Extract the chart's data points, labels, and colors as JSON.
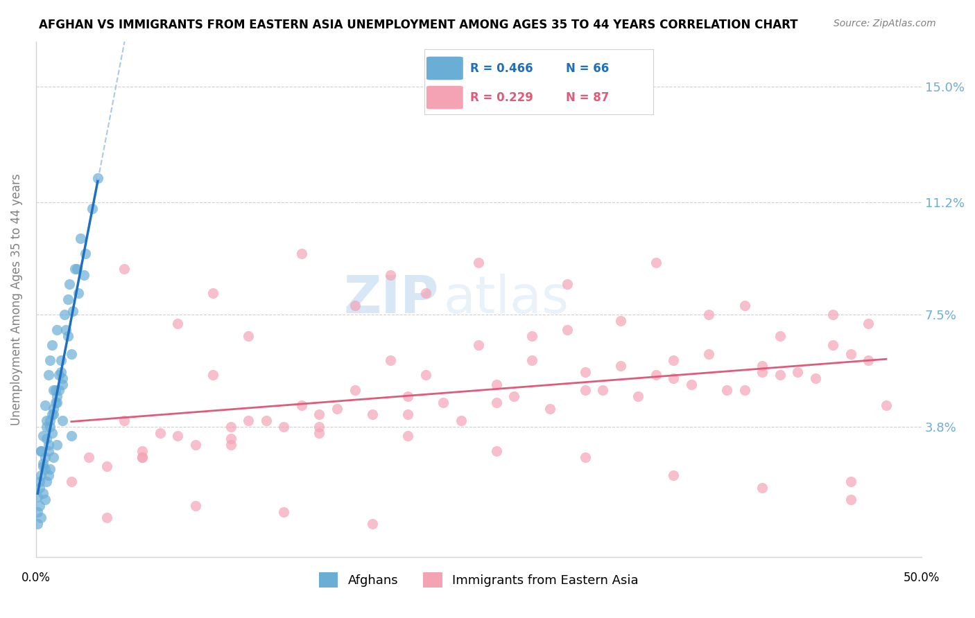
{
  "title": "AFGHAN VS IMMIGRANTS FROM EASTERN ASIA UNEMPLOYMENT AMONG AGES 35 TO 44 YEARS CORRELATION CHART",
  "source": "Source: ZipAtlas.com",
  "ylabel": "Unemployment Among Ages 35 to 44 years",
  "ytick_labels": [
    "3.8%",
    "7.5%",
    "11.2%",
    "15.0%"
  ],
  "ytick_values": [
    0.038,
    0.075,
    0.112,
    0.15
  ],
  "xlim": [
    0.0,
    0.5
  ],
  "ylim": [
    -0.005,
    0.165
  ],
  "legend_r1": "R = 0.466",
  "legend_n1": "N = 66",
  "legend_r2": "R = 0.229",
  "legend_n2": "N = 87",
  "color_afghan": "#6aaed6",
  "color_eastern_asia": "#f4a3b5",
  "color_trendline_afghan": "#1f6fbf",
  "color_trendline_eastern": "#e05a7a",
  "color_diagonal": "#aac8e8",
  "background_color": "#ffffff",
  "grid_color": "#d0d0d0",
  "right_axis_color": "#6baed6",
  "watermark_zip": "ZIP",
  "watermark_atlas": "atlas",
  "afghan_x": [
    0.01,
    0.015,
    0.02,
    0.008,
    0.005,
    0.003,
    0.012,
    0.018,
    0.025,
    0.022,
    0.007,
    0.009,
    0.004,
    0.006,
    0.011,
    0.014,
    0.017,
    0.013,
    0.002,
    0.001,
    0.016,
    0.019,
    0.023,
    0.028,
    0.032,
    0.035,
    0.008,
    0.004,
    0.003,
    0.006,
    0.009,
    0.012,
    0.015,
    0.007,
    0.005,
    0.01,
    0.02,
    0.014,
    0.011,
    0.013,
    0.002,
    0.001,
    0.003,
    0.004,
    0.006,
    0.008,
    0.01,
    0.012,
    0.005,
    0.007,
    0.009,
    0.015,
    0.018,
    0.021,
    0.024,
    0.027,
    0.003,
    0.001,
    0.002,
    0.004,
    0.006,
    0.008,
    0.01,
    0.012,
    0.005,
    0.007
  ],
  "afghan_y": [
    0.05,
    0.04,
    0.035,
    0.06,
    0.045,
    0.03,
    0.07,
    0.08,
    0.1,
    0.09,
    0.055,
    0.065,
    0.025,
    0.04,
    0.05,
    0.06,
    0.07,
    0.055,
    0.02,
    0.015,
    0.075,
    0.085,
    0.09,
    0.095,
    0.11,
    0.12,
    0.04,
    0.035,
    0.03,
    0.038,
    0.042,
    0.048,
    0.052,
    0.032,
    0.028,
    0.044,
    0.062,
    0.056,
    0.046,
    0.05,
    0.018,
    0.01,
    0.022,
    0.026,
    0.034,
    0.038,
    0.042,
    0.046,
    0.024,
    0.03,
    0.036,
    0.054,
    0.068,
    0.076,
    0.082,
    0.088,
    0.008,
    0.006,
    0.012,
    0.016,
    0.02,
    0.024,
    0.028,
    0.032,
    0.014,
    0.022
  ],
  "eastern_x": [
    0.05,
    0.1,
    0.15,
    0.2,
    0.25,
    0.3,
    0.35,
    0.4,
    0.45,
    0.48,
    0.08,
    0.12,
    0.18,
    0.22,
    0.28,
    0.33,
    0.38,
    0.42,
    0.47,
    0.06,
    0.11,
    0.16,
    0.21,
    0.26,
    0.31,
    0.36,
    0.41,
    0.46,
    0.04,
    0.09,
    0.14,
    0.19,
    0.24,
    0.29,
    0.34,
    0.39,
    0.44,
    0.03,
    0.07,
    0.13,
    0.17,
    0.23,
    0.27,
    0.32,
    0.37,
    0.43,
    0.02,
    0.06,
    0.11,
    0.16,
    0.21,
    0.26,
    0.31,
    0.36,
    0.41,
    0.46,
    0.05,
    0.1,
    0.15,
    0.2,
    0.25,
    0.3,
    0.35,
    0.4,
    0.45,
    0.08,
    0.12,
    0.18,
    0.22,
    0.28,
    0.33,
    0.38,
    0.42,
    0.47,
    0.06,
    0.11,
    0.16,
    0.21,
    0.26,
    0.31,
    0.36,
    0.41,
    0.46,
    0.04,
    0.09,
    0.14,
    0.19
  ],
  "eastern_y": [
    0.04,
    0.055,
    0.045,
    0.06,
    0.065,
    0.07,
    0.055,
    0.05,
    0.065,
    0.045,
    0.035,
    0.04,
    0.05,
    0.055,
    0.06,
    0.058,
    0.062,
    0.055,
    0.06,
    0.03,
    0.038,
    0.042,
    0.048,
    0.052,
    0.056,
    0.06,
    0.058,
    0.062,
    0.025,
    0.032,
    0.038,
    0.042,
    0.04,
    0.044,
    0.048,
    0.05,
    0.054,
    0.028,
    0.036,
    0.04,
    0.044,
    0.046,
    0.048,
    0.05,
    0.052,
    0.056,
    0.02,
    0.028,
    0.034,
    0.038,
    0.042,
    0.046,
    0.05,
    0.054,
    0.056,
    0.02,
    0.09,
    0.082,
    0.095,
    0.088,
    0.092,
    0.085,
    0.092,
    0.078,
    0.075,
    0.072,
    0.068,
    0.078,
    0.082,
    0.068,
    0.073,
    0.075,
    0.068,
    0.072,
    0.028,
    0.032,
    0.036,
    0.035,
    0.03,
    0.028,
    0.022,
    0.018,
    0.014,
    0.008,
    0.012,
    0.01,
    0.006
  ]
}
